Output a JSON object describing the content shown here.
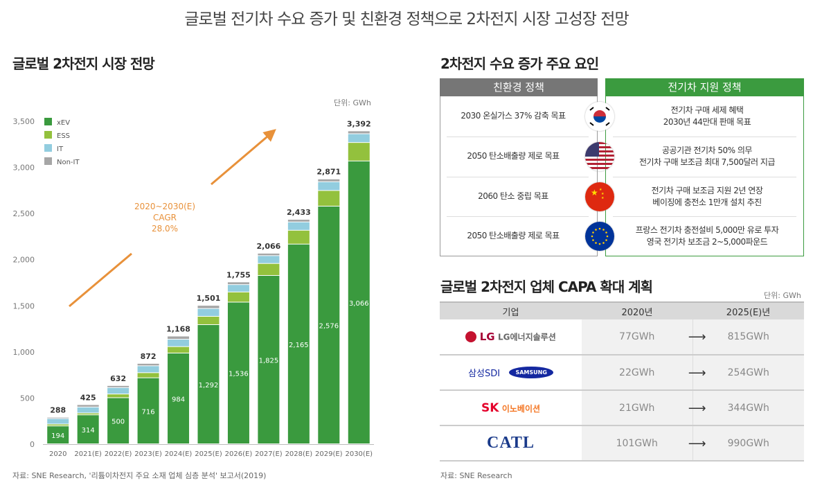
{
  "title": "글로벌 전기차 수요 증가 및 친환경 정책으로 2차전지 시장 고성장 전망",
  "left": {
    "title": "글로벌 2차전지 시장 전망",
    "unit": "단위: GWh",
    "source": "자료: SNE Research, '리튬이차전지 주요 소재 업체 심층 분석' 보고서(2019)",
    "annotation": [
      "2020~2030(E)",
      "CAGR",
      "28.0%"
    ]
  },
  "chart_data": {
    "type": "bar",
    "stacked": true,
    "categories": [
      "2020",
      "2021(E)",
      "2022(E)",
      "2023(E)",
      "2024(E)",
      "2025(E)",
      "2026(E)",
      "2027(E)",
      "2028(E)",
      "2029(E)",
      "2030(E)"
    ],
    "series": [
      {
        "name": "xEV",
        "color": "#3a9a3e",
        "values": [
          194,
          314,
          500,
          716,
          984,
          1292,
          1536,
          1825,
          2165,
          2576,
          3066
        ]
      },
      {
        "name": "ESS",
        "color": "#93c13d",
        "values": [
          20,
          20,
          40,
          55,
          70,
          90,
          110,
          130,
          150,
          170,
          200
        ]
      },
      {
        "name": "IT",
        "color": "#92cddf",
        "values": [
          60,
          65,
          70,
          75,
          80,
          85,
          80,
          85,
          90,
          95,
          95
        ]
      },
      {
        "name": "Non-IT",
        "color": "#a6a6a6",
        "values": [
          14,
          26,
          22,
          26,
          34,
          34,
          29,
          26,
          28,
          30,
          31
        ]
      }
    ],
    "totals": [
      "288",
      "425",
      "632",
      "872",
      "1,168",
      "1,501",
      "1,755",
      "2,066",
      "2,433",
      "2,871",
      "3,392"
    ],
    "xev_labels": [
      "194",
      "314",
      "500",
      "716",
      "984",
      "1,292",
      "1,536",
      "1,825",
      "2,165",
      "2,576",
      "3,066"
    ],
    "yticks": [
      "0",
      "500",
      "1,000",
      "1,500",
      "2,000",
      "2,500",
      "3,000",
      "3,500"
    ],
    "ylim": [
      0,
      3500
    ],
    "legend": "top-left",
    "grid": false
  },
  "right": {
    "title": "2차전지 수요 증가 주요 요인",
    "eco_header": "친환경 정책",
    "ev_header": "전기차 지원 정책",
    "eco_color": "#767676",
    "ev_color": "#3b9b3f",
    "rows": [
      {
        "flag": "korea-flag-icon",
        "eco": "2030 온실가스 37% 감축 목표",
        "ev": [
          "전기차 구매 세제 혜택",
          "2030년 44만대 판매 목표"
        ]
      },
      {
        "flag": "usa-flag-icon",
        "eco": "2050 탄소배출량 제로 목표",
        "ev": [
          "공공기관 전기차 50% 의무",
          "전기차 구매 보조금 최대 7,500달러 지급"
        ]
      },
      {
        "flag": "china-flag-icon",
        "eco": "2060 탄소 중립 목표",
        "ev": [
          "전기차 구매 보조금 지원 2년 연장",
          "베이징에 충전소 1만개 설치 추진"
        ]
      },
      {
        "flag": "eu-flag-icon",
        "eco": "2050 탄소배출량 제로 목표",
        "ev": [
          "프랑스 전기차 충전설비 5,000만 유로 투자",
          "영국 전기차 보조금 2~5,000파운드"
        ]
      }
    ]
  },
  "capa": {
    "title": "글로벌 2차전지 업체 CAPA 확대 계획",
    "unit": "단위: GWh",
    "headers": [
      "기업",
      "2020년",
      "2025(E)년"
    ],
    "rows": [
      {
        "company": "LG에너지솔루션",
        "logo": "LG",
        "v2020": "77GWh",
        "v2025": "815GWh"
      },
      {
        "company": "삼성SDI",
        "logo": "SAMSUNG",
        "v2020": "22GWh",
        "v2025": "254GWh"
      },
      {
        "company": "이노베이션",
        "logo": "SK",
        "v2020": "21GWh",
        "v2025": "344GWh"
      },
      {
        "company": "CATL",
        "logo": "CATL",
        "v2020": "101GWh",
        "v2025": "990GWh"
      }
    ],
    "source": "자료: SNE Research"
  }
}
